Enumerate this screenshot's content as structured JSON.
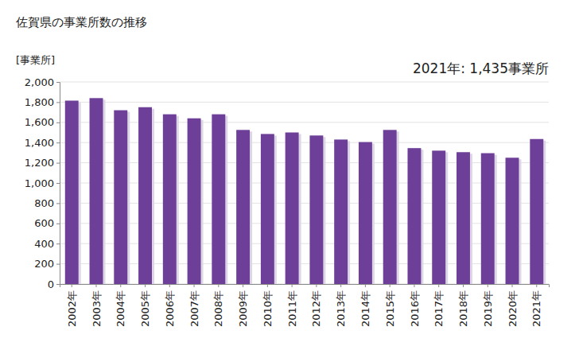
{
  "chart_data": {
    "type": "bar",
    "title": "佐賀県の事業所数の推移",
    "y_label": "[事業所]",
    "annotation": "2021年: 1,435事業所",
    "categories": [
      "2002年",
      "2003年",
      "2004年",
      "2005年",
      "2006年",
      "2007年",
      "2008年",
      "2009年",
      "2010年",
      "2011年",
      "2012年",
      "2013年",
      "2014年",
      "2015年",
      "2016年",
      "2017年",
      "2018年",
      "2019年",
      "2020年",
      "2021年"
    ],
    "values": [
      1815,
      1840,
      1720,
      1750,
      1680,
      1640,
      1680,
      1525,
      1485,
      1500,
      1470,
      1430,
      1405,
      1525,
      1345,
      1320,
      1305,
      1295,
      1250,
      1435
    ],
    "color": "#6d3f98",
    "ylim": [
      0,
      2000
    ],
    "yticks": [
      0,
      200,
      400,
      600,
      800,
      {
        "value": 1000,
        "label": "1,000"
      },
      {
        "value": 1200,
        "label": "1,200"
      },
      {
        "value": 1400,
        "label": "1,400"
      },
      {
        "value": 1600,
        "label": "1,600"
      },
      {
        "value": 1800,
        "label": "1,800"
      },
      {
        "value": 2000,
        "label": "2,000"
      }
    ],
    "grid": true
  }
}
